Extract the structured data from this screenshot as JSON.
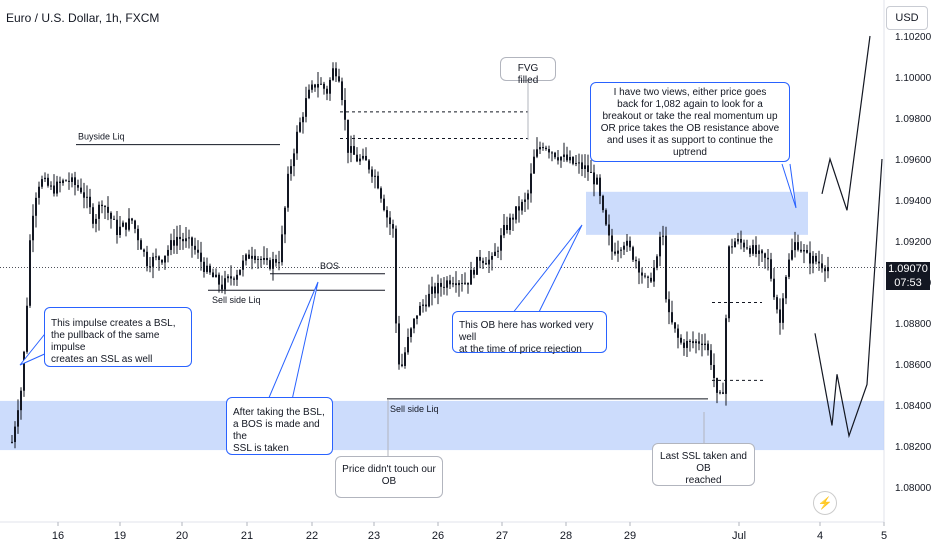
{
  "header": {
    "symbol_title": "Euro / U.S. Dollar, 1h, FXCM",
    "currency": "USD"
  },
  "price_scale": {
    "ticks": [
      "1.10200",
      "1.10000",
      "1.09800",
      "1.09600",
      "1.09400",
      "1.09200",
      "1.09000",
      "1.08800",
      "1.08600",
      "1.08400",
      "1.08200",
      "1.08000"
    ],
    "last_price": "1.09070",
    "countdown": "07:53",
    "last_price_color": "#131722"
  },
  "time_axis": {
    "labels": [
      "16",
      "19",
      "20",
      "21",
      "22",
      "23",
      "26",
      "27",
      "28",
      "29",
      "Jul",
      "4",
      "5"
    ]
  },
  "chart_data": {
    "type": "candlestick",
    "title": "Euro / U.S. Dollar, 1h, FXCM",
    "ylim": [
      1.0798,
      1.1022
    ],
    "x_categories": [
      "16",
      "19",
      "20",
      "21",
      "22",
      "23",
      "26",
      "27",
      "28",
      "29",
      "Jul",
      "4",
      "5"
    ],
    "series": [
      {
        "values": [
          [
            0,
            1.0822
          ],
          [
            6,
            1.084
          ],
          [
            10,
            1.085
          ],
          [
            14,
            1.088
          ],
          [
            18,
            1.092
          ],
          [
            22,
            1.094
          ],
          [
            28,
            1.095
          ],
          [
            40,
            1.0945
          ],
          [
            55,
            1.095
          ],
          [
            70,
            1.0945
          ],
          [
            82,
            1.093
          ],
          [
            90,
            1.094
          ],
          [
            105,
            1.0925
          ],
          [
            120,
            1.093
          ],
          [
            135,
            1.091
          ],
          [
            150,
            1.0912
          ],
          [
            165,
            1.0922
          ],
          [
            180,
            1.0918
          ],
          [
            195,
            1.0905
          ],
          [
            210,
            1.0898
          ],
          [
            225,
            1.0905
          ],
          [
            240,
            1.0915
          ],
          [
            255,
            1.0908
          ],
          [
            268,
            1.0912
          ],
          [
            276,
            1.095
          ],
          [
            284,
            1.097
          ],
          [
            295,
            1.099
          ],
          [
            305,
            1.0998
          ],
          [
            315,
            1.0993
          ],
          [
            322,
            1.1005
          ],
          [
            328,
            1.1
          ],
          [
            336,
            1.0965
          ],
          [
            345,
            1.096
          ],
          [
            355,
            1.0958
          ],
          [
            365,
            1.095
          ],
          [
            375,
            1.0932
          ],
          [
            381,
            1.0925
          ],
          [
            384,
            1.088
          ],
          [
            388,
            1.0855
          ],
          [
            395,
            1.087
          ],
          [
            405,
            1.0885
          ],
          [
            420,
            1.0895
          ],
          [
            440,
            1.0902
          ],
          [
            455,
            1.09
          ],
          [
            468,
            1.0912
          ],
          [
            480,
            1.091
          ],
          [
            492,
            1.0925
          ],
          [
            505,
            1.0935
          ],
          [
            515,
            1.094
          ],
          [
            522,
            1.096
          ],
          [
            530,
            1.0968
          ],
          [
            545,
            1.0962
          ],
          [
            560,
            1.0958
          ],
          [
            575,
            1.0955
          ],
          [
            585,
            1.0948
          ],
          [
            592,
            1.093
          ],
          [
            600,
            1.0915
          ],
          [
            612,
            1.092
          ],
          [
            625,
            1.091
          ],
          [
            635,
            1.0898
          ],
          [
            645,
            1.091
          ],
          [
            650,
            1.093
          ],
          [
            655,
            1.0885
          ],
          [
            668,
            1.087
          ],
          [
            680,
            1.087
          ],
          [
            692,
            1.0872
          ],
          [
            700,
            1.086
          ],
          [
            706,
            1.084
          ],
          [
            712,
            1.085
          ],
          [
            716,
            1.0915
          ],
          [
            722,
            1.092
          ],
          [
            735,
            1.0918
          ],
          [
            748,
            1.0912
          ],
          [
            756,
            1.091
          ],
          [
            762,
            1.0895
          ],
          [
            768,
            1.088
          ],
          [
            772,
            1.09
          ],
          [
            778,
            1.0912
          ],
          [
            784,
            1.092
          ],
          [
            795,
            1.0912
          ],
          [
            805,
            1.091
          ],
          [
            818,
            1.0907
          ]
        ]
      }
    ],
    "zones": [
      {
        "label": "OB",
        "y_range": [
          1.0923,
          1.0944
        ]
      },
      {
        "label": "OB",
        "y_range": [
          1.0818,
          1.0842
        ]
      }
    ],
    "levels": [
      {
        "label": "Buyside Liq",
        "y": 1.0967
      },
      {
        "label": "BOS",
        "y": 1.0904
      },
      {
        "label": "Sell side Liq",
        "y": 1.0896
      },
      {
        "label": "Sell side Liq",
        "y": 1.0843
      }
    ],
    "annotations": {
      "fvg": "FVG filled",
      "ann_two_views": [
        "I have two views, either price goes",
        "back for 1,082 again to look for a",
        "breakout or take the real momentum up",
        "OR price takes the OB resistance above",
        "and uses it as support to continue the uptrend"
      ],
      "ann_impulse": [
        "This impulse creates a BSL,",
        "the pullback of the same impulse",
        "creates an SSL as well"
      ],
      "ann_bos": [
        "After taking the BSL,",
        "a BOS is made and the",
        "SSL is taken"
      ],
      "ann_ob": [
        "This OB here has worked very well",
        "at the time of price rejection"
      ],
      "ann_untouched": [
        "Price didn't touch our",
        "OB"
      ],
      "ann_last": [
        "Last SSL taken and OB",
        "reached"
      ]
    },
    "projections": [
      {
        "values": [
          [
            810,
            1.0943
          ],
          [
            818,
            1.096
          ],
          [
            835,
            1.0935
          ],
          [
            858,
            1.102
          ]
        ]
      },
      {
        "values": [
          [
            803,
            1.0875
          ],
          [
            820,
            1.083
          ],
          [
            825,
            1.0855
          ],
          [
            837,
            1.0825
          ],
          [
            855,
            1.085
          ],
          [
            870,
            1.096
          ]
        ]
      }
    ]
  }
}
